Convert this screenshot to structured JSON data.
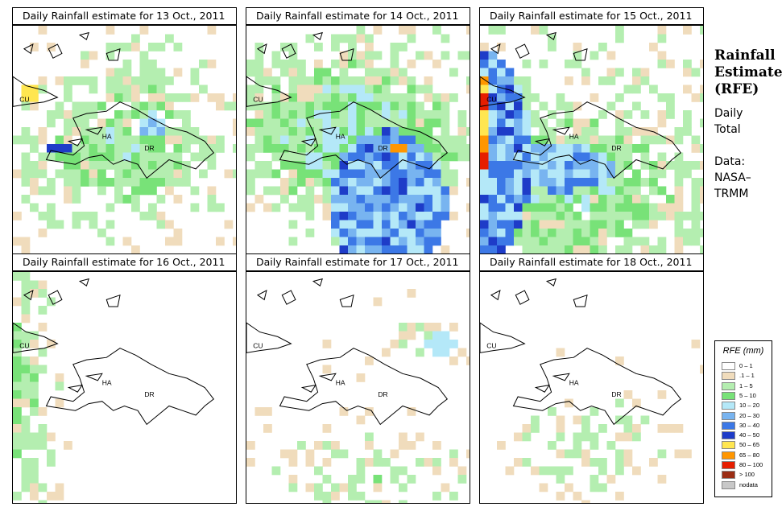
{
  "panels": [
    {
      "title": "Daily Rainfall estimate for  13 Oct., 2011"
    },
    {
      "title": "Daily Rainfall estimate for  14 Oct., 2011"
    },
    {
      "title": "Daily Rainfall estimate for  15 Oct., 2011"
    },
    {
      "title": "Daily Rainfall estimate for  16 Oct., 2011"
    },
    {
      "title": "Daily Rainfall estimate for  17 Oct., 2011"
    },
    {
      "title": "Daily Rainfall estimate for  18 Oct., 2011"
    }
  ],
  "map_labels": {
    "cuba": "CU",
    "haiti": "HA",
    "dominican_republic": "DR"
  },
  "sidebar": {
    "title_lines": [
      "Rainfall",
      "Estimate",
      "(RFE)"
    ],
    "period_lines": [
      "Daily",
      "Total"
    ],
    "source_lines": [
      "Data:",
      "NASA–",
      "TRMM"
    ]
  },
  "legend": {
    "title": "RFE (mm)",
    "items": [
      {
        "label": "0 – 1",
        "color": "#ffffff"
      },
      {
        "label": ".1 – 1",
        "color": "#f0dcbc"
      },
      {
        "label": "1 – 5",
        "color": "#b4eeb0"
      },
      {
        "label": "5 – 10",
        "color": "#78e278"
      },
      {
        "label": "10 – 20",
        "color": "#b4e8f8"
      },
      {
        "label": "20 – 30",
        "color": "#78b4f0"
      },
      {
        "label": "30 – 40",
        "color": "#3c78e6"
      },
      {
        "label": "40 – 50",
        "color": "#1e3cc8"
      },
      {
        "label": "50 – 65",
        "color": "#ffe650"
      },
      {
        "label": "65 – 80",
        "color": "#ff9600"
      },
      {
        "label": "80 – 100",
        "color": "#e61e00"
      },
      {
        "label": "> 100",
        "color": "#9b2d14"
      },
      {
        "label": "nodata",
        "color": "#c8c8c8"
      }
    ]
  }
}
